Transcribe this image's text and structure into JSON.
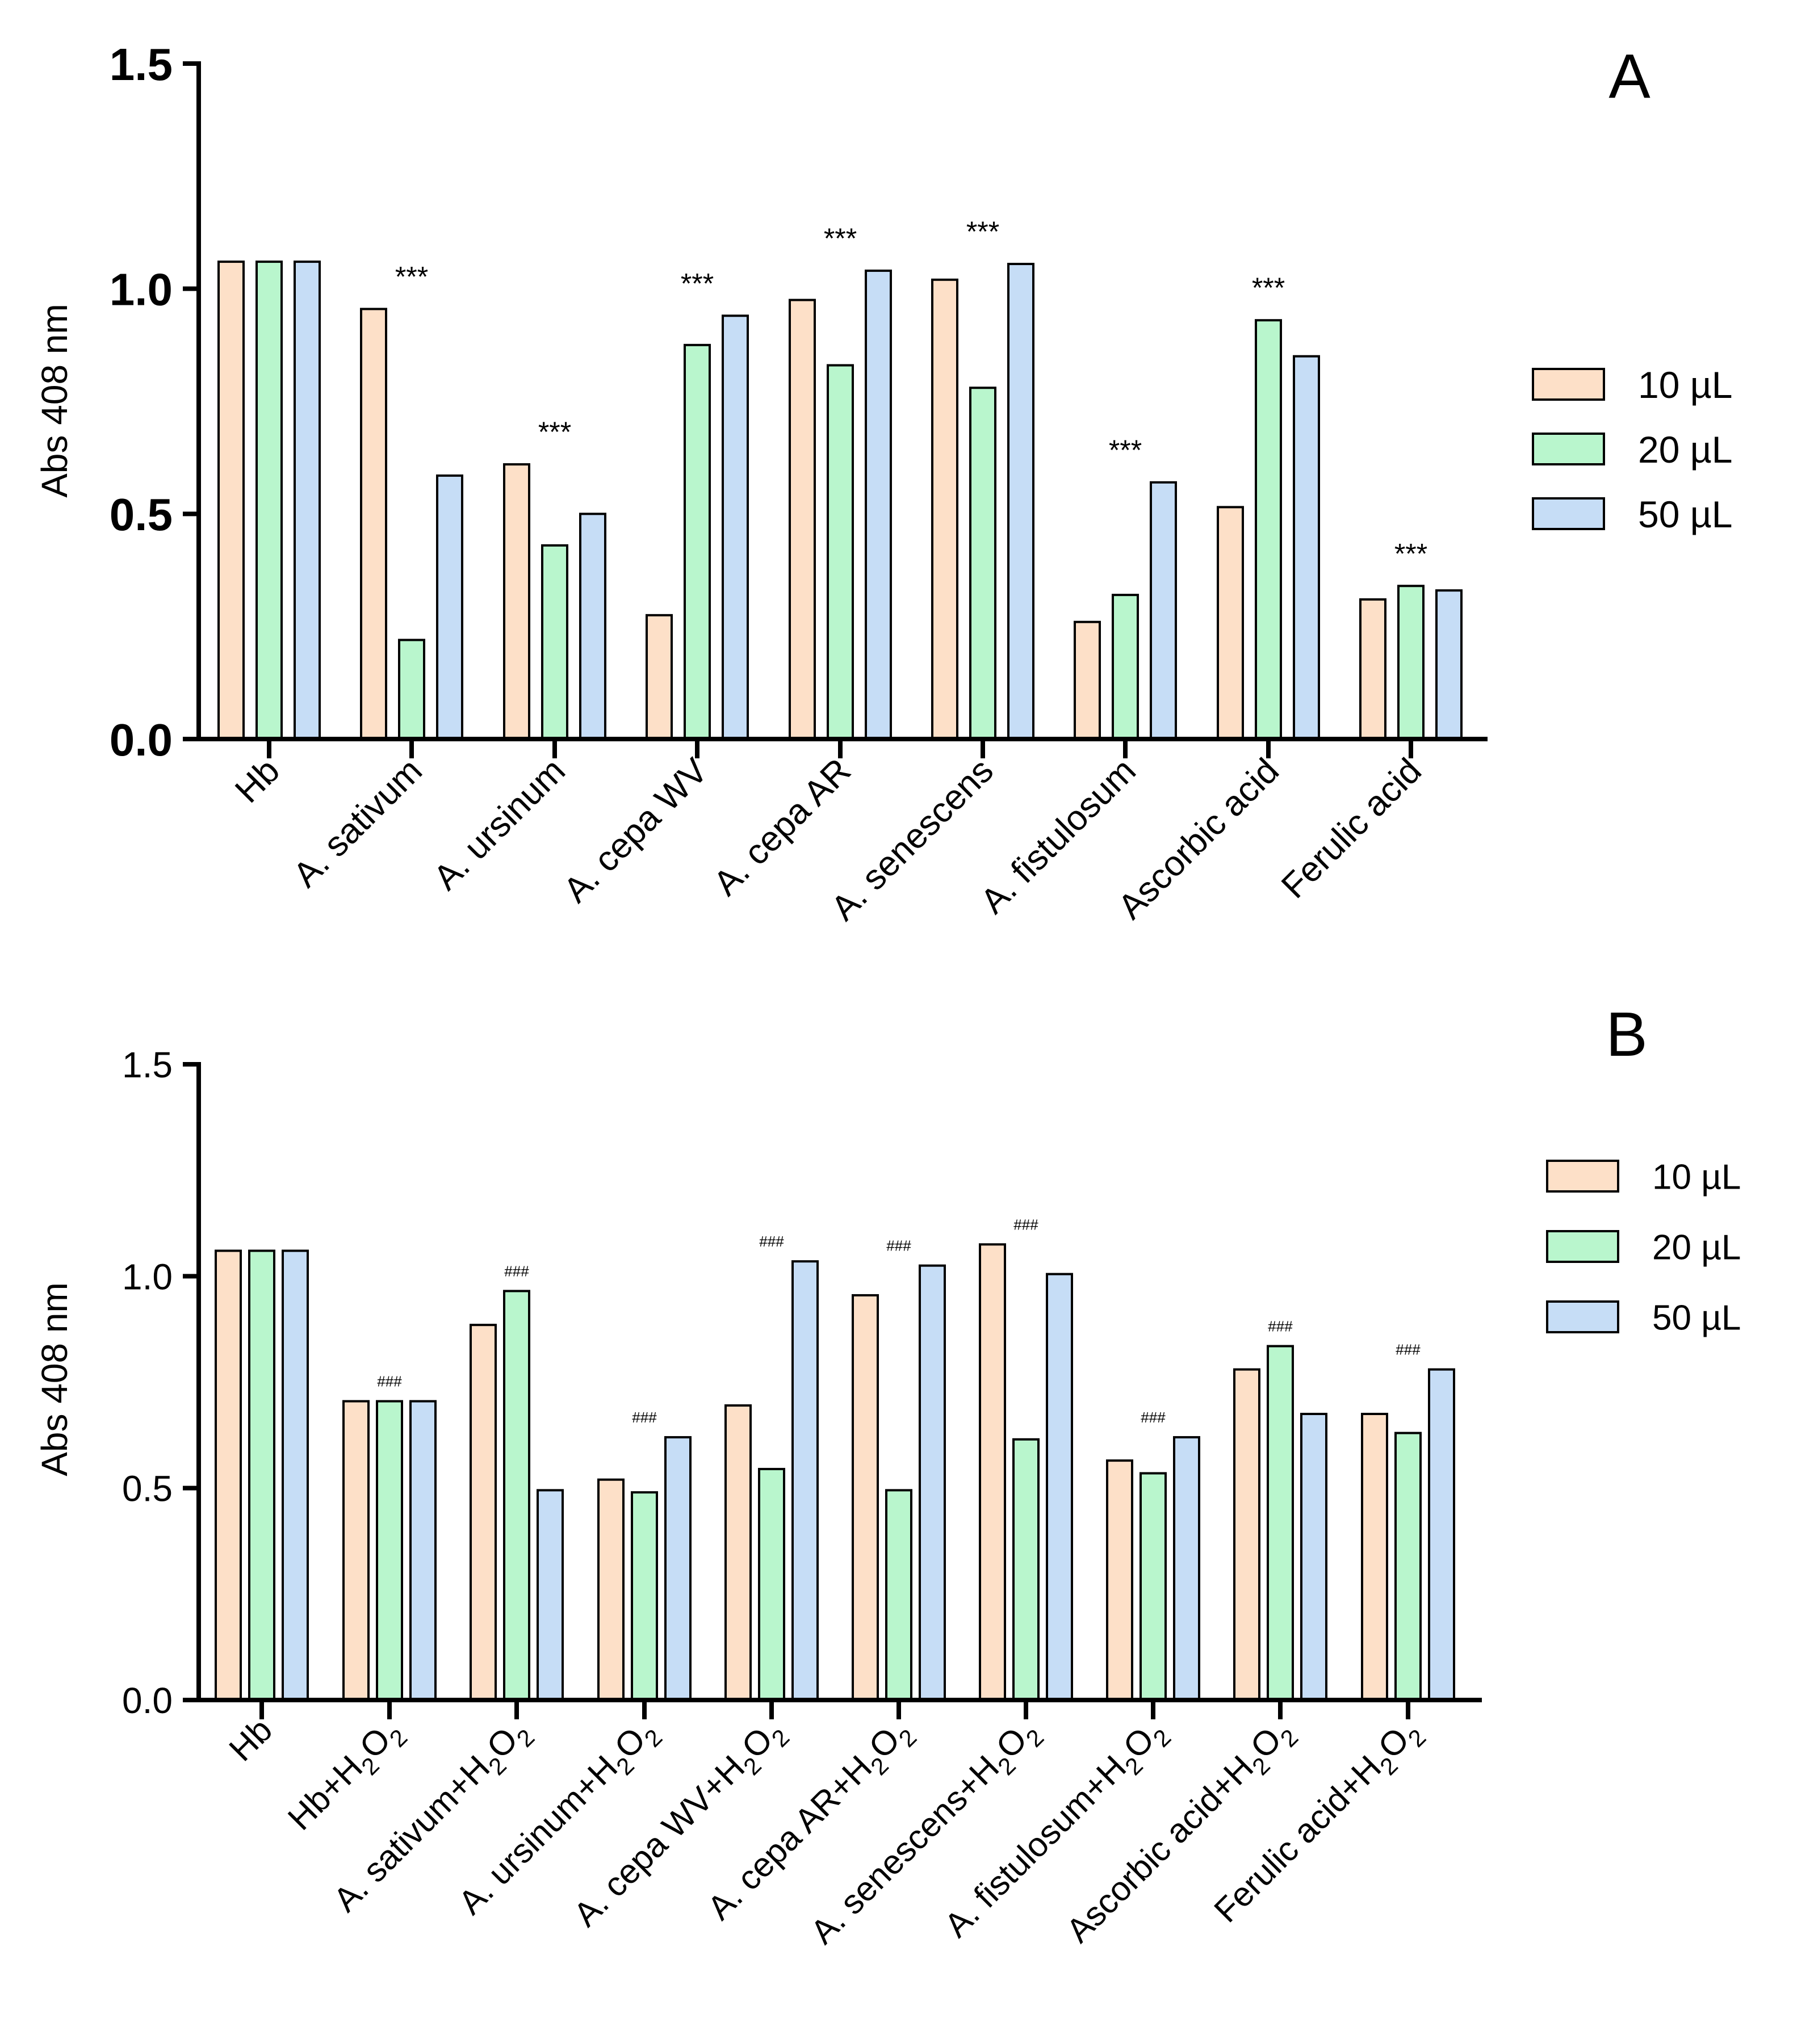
{
  "colors": {
    "10 µL": "#fde0c8",
    "20 µL": "#b9f6cd",
    "50 µL": "#c6ddf6",
    "axis": "#000000"
  },
  "chart_data": [
    {
      "type": "bar",
      "panel_label": "A",
      "ylabel": "Abs 408 nm",
      "ylim": [
        0,
        1.5
      ],
      "yticks": [
        "0.0",
        "0.5",
        "1.0",
        "1.5"
      ],
      "categories": [
        "Hb",
        "A. sativum",
        "A. ursinum",
        "A. cepa WV",
        "A. cepa AR",
        "A. senescens",
        "A. fistulosum",
        "Ascorbic acid",
        "Ferulic acid"
      ],
      "series": [
        {
          "name": "10 µL",
          "values": [
            1.06,
            0.955,
            0.61,
            0.275,
            0.975,
            1.02,
            0.26,
            0.515,
            0.31
          ]
        },
        {
          "name": "20 µL",
          "values": [
            1.06,
            0.22,
            0.43,
            0.875,
            0.83,
            0.78,
            0.32,
            0.93,
            0.34
          ]
        },
        {
          "name": "50 µL",
          "values": [
            1.06,
            0.585,
            0.5,
            0.94,
            1.04,
            1.055,
            0.57,
            0.85,
            0.33
          ]
        }
      ],
      "annotations": [
        "",
        "***",
        "***",
        "***",
        "***",
        "***",
        "***",
        "***",
        "***"
      ],
      "legend": "right"
    },
    {
      "type": "bar",
      "panel_label": "B",
      "ylabel": "Abs 408 nm",
      "ylim": [
        0,
        1.5
      ],
      "yticks": [
        "0.0",
        "0.5",
        "1.0",
        "1.5"
      ],
      "categories": [
        "Hb",
        "Hb+H2O2",
        "A. sativum+H2O2",
        "A. ursinum+H2O2",
        "A. cepa WV+H2O2",
        "A. cepa AR+H2O2",
        "A. senescens+H2O2",
        "A. fistulosum+H2O2",
        "Ascorbic acid+H2O2",
        "Ferulic acid+H2O2"
      ],
      "series": [
        {
          "name": "10 µL",
          "values": [
            1.06,
            0.705,
            0.885,
            0.52,
            0.695,
            0.955,
            1.075,
            0.565,
            0.78,
            0.675
          ]
        },
        {
          "name": "20 µL",
          "values": [
            1.06,
            0.705,
            0.965,
            0.49,
            0.545,
            0.495,
            0.615,
            0.535,
            0.835,
            0.63
          ]
        },
        {
          "name": "50 µL",
          "values": [
            1.06,
            0.705,
            0.495,
            0.62,
            1.035,
            1.025,
            1.005,
            0.62,
            0.675,
            0.78
          ]
        }
      ],
      "annotations": [
        "",
        "###",
        "###",
        "###",
        "###",
        "###",
        "###",
        "###",
        "###",
        "###"
      ],
      "legend": "right"
    }
  ]
}
